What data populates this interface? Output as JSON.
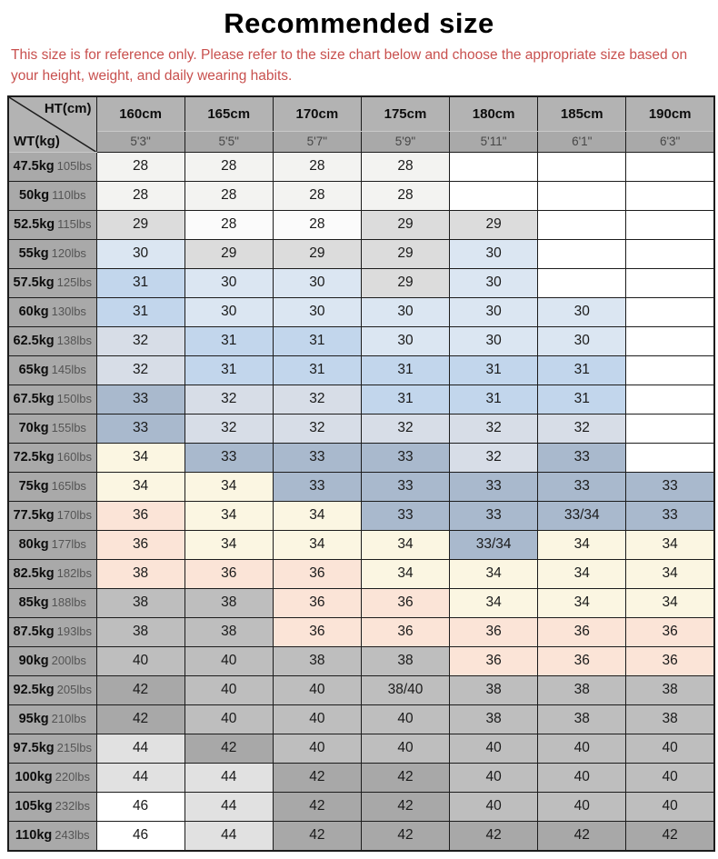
{
  "title": "Recommended size",
  "note": "This size is for reference only. Please refer to the size chart below and choose the appropriate size based on your height, weight, and daily wearing habits.",
  "palette": {
    "w": "#ffffff",
    "ow": "#f3f3f1",
    "w2": "#fbfbfb",
    "lg": "#dcdcdc",
    "pb": "#dbe6f2",
    "mb": "#c2d6ec",
    "ps": "#d7dde7",
    "bgr": "#a9b9cd",
    "cr": "#fbf6e2",
    "pk": "#fbe4d7",
    "gy": "#bebebe",
    "dg": "#a8a8a8",
    "lg2": "#e1e1e1"
  },
  "colors": {
    "note_red": "#c8504e",
    "header_bg": "#b3b3b3",
    "subheader_bg": "#a9a9a9",
    "border": "#1c1c1c"
  },
  "header": {
    "corner_top": "HT(cm)",
    "corner_bottom": "WT(kg)",
    "heights": [
      "160cm",
      "165cm",
      "170cm",
      "175cm",
      "180cm",
      "185cm",
      "190cm"
    ],
    "feet": [
      "5'3\"",
      "5'5\"",
      "5'7\"",
      "5'9\"",
      "5'11\"",
      "6'1\"",
      "6'3\""
    ]
  },
  "rows": [
    {
      "kg": "47.5kg",
      "lbs": "105lbs",
      "cells": [
        {
          "v": "28",
          "c": "ow"
        },
        {
          "v": "28",
          "c": "ow"
        },
        {
          "v": "28",
          "c": "ow"
        },
        {
          "v": "28",
          "c": "ow"
        },
        {
          "v": "",
          "c": "w"
        },
        {
          "v": "",
          "c": "w"
        },
        {
          "v": "",
          "c": "w"
        }
      ]
    },
    {
      "kg": "50kg",
      "lbs": "110lbs",
      "cells": [
        {
          "v": "28",
          "c": "ow"
        },
        {
          "v": "28",
          "c": "ow"
        },
        {
          "v": "28",
          "c": "ow"
        },
        {
          "v": "28",
          "c": "ow"
        },
        {
          "v": "",
          "c": "w"
        },
        {
          "v": "",
          "c": "w"
        },
        {
          "v": "",
          "c": "w"
        }
      ]
    },
    {
      "kg": "52.5kg",
      "lbs": "115lbs",
      "cells": [
        {
          "v": "29",
          "c": "lg"
        },
        {
          "v": "28",
          "c": "w2"
        },
        {
          "v": "28",
          "c": "w2"
        },
        {
          "v": "29",
          "c": "lg"
        },
        {
          "v": "29",
          "c": "lg"
        },
        {
          "v": "",
          "c": "w"
        },
        {
          "v": "",
          "c": "w"
        }
      ]
    },
    {
      "kg": "55kg",
      "lbs": "120lbs",
      "cells": [
        {
          "v": "30",
          "c": "pb"
        },
        {
          "v": "29",
          "c": "lg"
        },
        {
          "v": "29",
          "c": "lg"
        },
        {
          "v": "29",
          "c": "lg"
        },
        {
          "v": "30",
          "c": "pb"
        },
        {
          "v": "",
          "c": "w"
        },
        {
          "v": "",
          "c": "w"
        }
      ]
    },
    {
      "kg": "57.5kg",
      "lbs": "125lbs",
      "cells": [
        {
          "v": "31",
          "c": "mb"
        },
        {
          "v": "30",
          "c": "pb"
        },
        {
          "v": "30",
          "c": "pb"
        },
        {
          "v": "29",
          "c": "lg"
        },
        {
          "v": "30",
          "c": "pb"
        },
        {
          "v": "",
          "c": "w"
        },
        {
          "v": "",
          "c": "w"
        }
      ]
    },
    {
      "kg": "60kg",
      "lbs": "130lbs",
      "cells": [
        {
          "v": "31",
          "c": "mb"
        },
        {
          "v": "30",
          "c": "pb"
        },
        {
          "v": "30",
          "c": "pb"
        },
        {
          "v": "30",
          "c": "pb"
        },
        {
          "v": "30",
          "c": "pb"
        },
        {
          "v": "30",
          "c": "pb"
        },
        {
          "v": "",
          "c": "w"
        }
      ]
    },
    {
      "kg": "62.5kg",
      "lbs": "138lbs",
      "cells": [
        {
          "v": "32",
          "c": "ps"
        },
        {
          "v": "31",
          "c": "mb"
        },
        {
          "v": "31",
          "c": "mb"
        },
        {
          "v": "30",
          "c": "pb"
        },
        {
          "v": "30",
          "c": "pb"
        },
        {
          "v": "30",
          "c": "pb"
        },
        {
          "v": "",
          "c": "w"
        }
      ]
    },
    {
      "kg": "65kg",
      "lbs": "145lbs",
      "cells": [
        {
          "v": "32",
          "c": "ps"
        },
        {
          "v": "31",
          "c": "mb"
        },
        {
          "v": "31",
          "c": "mb"
        },
        {
          "v": "31",
          "c": "mb"
        },
        {
          "v": "31",
          "c": "mb"
        },
        {
          "v": "31",
          "c": "mb"
        },
        {
          "v": "",
          "c": "w"
        }
      ]
    },
    {
      "kg": "67.5kg",
      "lbs": "150lbs",
      "cells": [
        {
          "v": "33",
          "c": "bgr"
        },
        {
          "v": "32",
          "c": "ps"
        },
        {
          "v": "32",
          "c": "ps"
        },
        {
          "v": "31",
          "c": "mb"
        },
        {
          "v": "31",
          "c": "mb"
        },
        {
          "v": "31",
          "c": "mb"
        },
        {
          "v": "",
          "c": "w"
        }
      ]
    },
    {
      "kg": "70kg",
      "lbs": "155lbs",
      "cells": [
        {
          "v": "33",
          "c": "bgr"
        },
        {
          "v": "32",
          "c": "ps"
        },
        {
          "v": "32",
          "c": "ps"
        },
        {
          "v": "32",
          "c": "ps"
        },
        {
          "v": "32",
          "c": "ps"
        },
        {
          "v": "32",
          "c": "ps"
        },
        {
          "v": "",
          "c": "w"
        }
      ]
    },
    {
      "kg": "72.5kg",
      "lbs": "160lbs",
      "cells": [
        {
          "v": "34",
          "c": "cr"
        },
        {
          "v": "33",
          "c": "bgr"
        },
        {
          "v": "33",
          "c": "bgr"
        },
        {
          "v": "33",
          "c": "bgr"
        },
        {
          "v": "32",
          "c": "ps"
        },
        {
          "v": "33",
          "c": "bgr"
        },
        {
          "v": "",
          "c": "w"
        }
      ]
    },
    {
      "kg": "75kg",
      "lbs": "165lbs",
      "cells": [
        {
          "v": "34",
          "c": "cr"
        },
        {
          "v": "34",
          "c": "cr"
        },
        {
          "v": "33",
          "c": "bgr"
        },
        {
          "v": "33",
          "c": "bgr"
        },
        {
          "v": "33",
          "c": "bgr"
        },
        {
          "v": "33",
          "c": "bgr"
        },
        {
          "v": "33",
          "c": "bgr"
        }
      ]
    },
    {
      "kg": "77.5kg",
      "lbs": "170lbs",
      "cells": [
        {
          "v": "36",
          "c": "pk"
        },
        {
          "v": "34",
          "c": "cr"
        },
        {
          "v": "34",
          "c": "cr"
        },
        {
          "v": "33",
          "c": "bgr"
        },
        {
          "v": "33",
          "c": "bgr"
        },
        {
          "v": "33/34",
          "c": "bgr"
        },
        {
          "v": "33",
          "c": "bgr"
        }
      ]
    },
    {
      "kg": "80kg",
      "lbs": "177lbs",
      "cells": [
        {
          "v": "36",
          "c": "pk"
        },
        {
          "v": "34",
          "c": "cr"
        },
        {
          "v": "34",
          "c": "cr"
        },
        {
          "v": "34",
          "c": "cr"
        },
        {
          "v": "33/34",
          "c": "bgr"
        },
        {
          "v": "34",
          "c": "cr"
        },
        {
          "v": "34",
          "c": "cr"
        }
      ]
    },
    {
      "kg": "82.5kg",
      "lbs": "182lbs",
      "cells": [
        {
          "v": "38",
          "c": "pk"
        },
        {
          "v": "36",
          "c": "pk"
        },
        {
          "v": "36",
          "c": "pk"
        },
        {
          "v": "34",
          "c": "cr"
        },
        {
          "v": "34",
          "c": "cr"
        },
        {
          "v": "34",
          "c": "cr"
        },
        {
          "v": "34",
          "c": "cr"
        }
      ]
    },
    {
      "kg": "85kg",
      "lbs": "188lbs",
      "cells": [
        {
          "v": "38",
          "c": "gy"
        },
        {
          "v": "38",
          "c": "gy"
        },
        {
          "v": "36",
          "c": "pk"
        },
        {
          "v": "36",
          "c": "pk"
        },
        {
          "v": "34",
          "c": "cr"
        },
        {
          "v": "34",
          "c": "cr"
        },
        {
          "v": "34",
          "c": "cr"
        }
      ]
    },
    {
      "kg": "87.5kg",
      "lbs": "193lbs",
      "cells": [
        {
          "v": "38",
          "c": "gy"
        },
        {
          "v": "38",
          "c": "gy"
        },
        {
          "v": "36",
          "c": "pk"
        },
        {
          "v": "36",
          "c": "pk"
        },
        {
          "v": "36",
          "c": "pk"
        },
        {
          "v": "36",
          "c": "pk"
        },
        {
          "v": "36",
          "c": "pk"
        }
      ]
    },
    {
      "kg": "90kg",
      "lbs": "200lbs",
      "cells": [
        {
          "v": "40",
          "c": "gy"
        },
        {
          "v": "40",
          "c": "gy"
        },
        {
          "v": "38",
          "c": "gy"
        },
        {
          "v": "38",
          "c": "gy"
        },
        {
          "v": "36",
          "c": "pk"
        },
        {
          "v": "36",
          "c": "pk"
        },
        {
          "v": "36",
          "c": "pk"
        }
      ]
    },
    {
      "kg": "92.5kg",
      "lbs": "205lbs",
      "cells": [
        {
          "v": "42",
          "c": "dg"
        },
        {
          "v": "40",
          "c": "gy"
        },
        {
          "v": "40",
          "c": "gy"
        },
        {
          "v": "38/40",
          "c": "gy"
        },
        {
          "v": "38",
          "c": "gy"
        },
        {
          "v": "38",
          "c": "gy"
        },
        {
          "v": "38",
          "c": "gy"
        }
      ]
    },
    {
      "kg": "95kg",
      "lbs": "210lbs",
      "cells": [
        {
          "v": "42",
          "c": "dg"
        },
        {
          "v": "40",
          "c": "gy"
        },
        {
          "v": "40",
          "c": "gy"
        },
        {
          "v": "40",
          "c": "gy"
        },
        {
          "v": "38",
          "c": "gy"
        },
        {
          "v": "38",
          "c": "gy"
        },
        {
          "v": "38",
          "c": "gy"
        }
      ]
    },
    {
      "kg": "97.5kg",
      "lbs": "215lbs",
      "cells": [
        {
          "v": "44",
          "c": "lg2"
        },
        {
          "v": "42",
          "c": "dg"
        },
        {
          "v": "40",
          "c": "gy"
        },
        {
          "v": "40",
          "c": "gy"
        },
        {
          "v": "40",
          "c": "gy"
        },
        {
          "v": "40",
          "c": "gy"
        },
        {
          "v": "40",
          "c": "gy"
        }
      ]
    },
    {
      "kg": "100kg",
      "lbs": "220lbs",
      "cells": [
        {
          "v": "44",
          "c": "lg2"
        },
        {
          "v": "44",
          "c": "lg2"
        },
        {
          "v": "42",
          "c": "dg"
        },
        {
          "v": "42",
          "c": "dg"
        },
        {
          "v": "40",
          "c": "gy"
        },
        {
          "v": "40",
          "c": "gy"
        },
        {
          "v": "40",
          "c": "gy"
        }
      ]
    },
    {
      "kg": "105kg",
      "lbs": "232lbs",
      "cells": [
        {
          "v": "46",
          "c": "w"
        },
        {
          "v": "44",
          "c": "lg2"
        },
        {
          "v": "42",
          "c": "dg"
        },
        {
          "v": "42",
          "c": "dg"
        },
        {
          "v": "40",
          "c": "gy"
        },
        {
          "v": "40",
          "c": "gy"
        },
        {
          "v": "40",
          "c": "gy"
        }
      ]
    },
    {
      "kg": "110kg",
      "lbs": "243lbs",
      "cells": [
        {
          "v": "46",
          "c": "w"
        },
        {
          "v": "44",
          "c": "lg2"
        },
        {
          "v": "42",
          "c": "dg"
        },
        {
          "v": "42",
          "c": "dg"
        },
        {
          "v": "42",
          "c": "dg"
        },
        {
          "v": "42",
          "c": "dg"
        },
        {
          "v": "42",
          "c": "dg"
        }
      ]
    }
  ]
}
